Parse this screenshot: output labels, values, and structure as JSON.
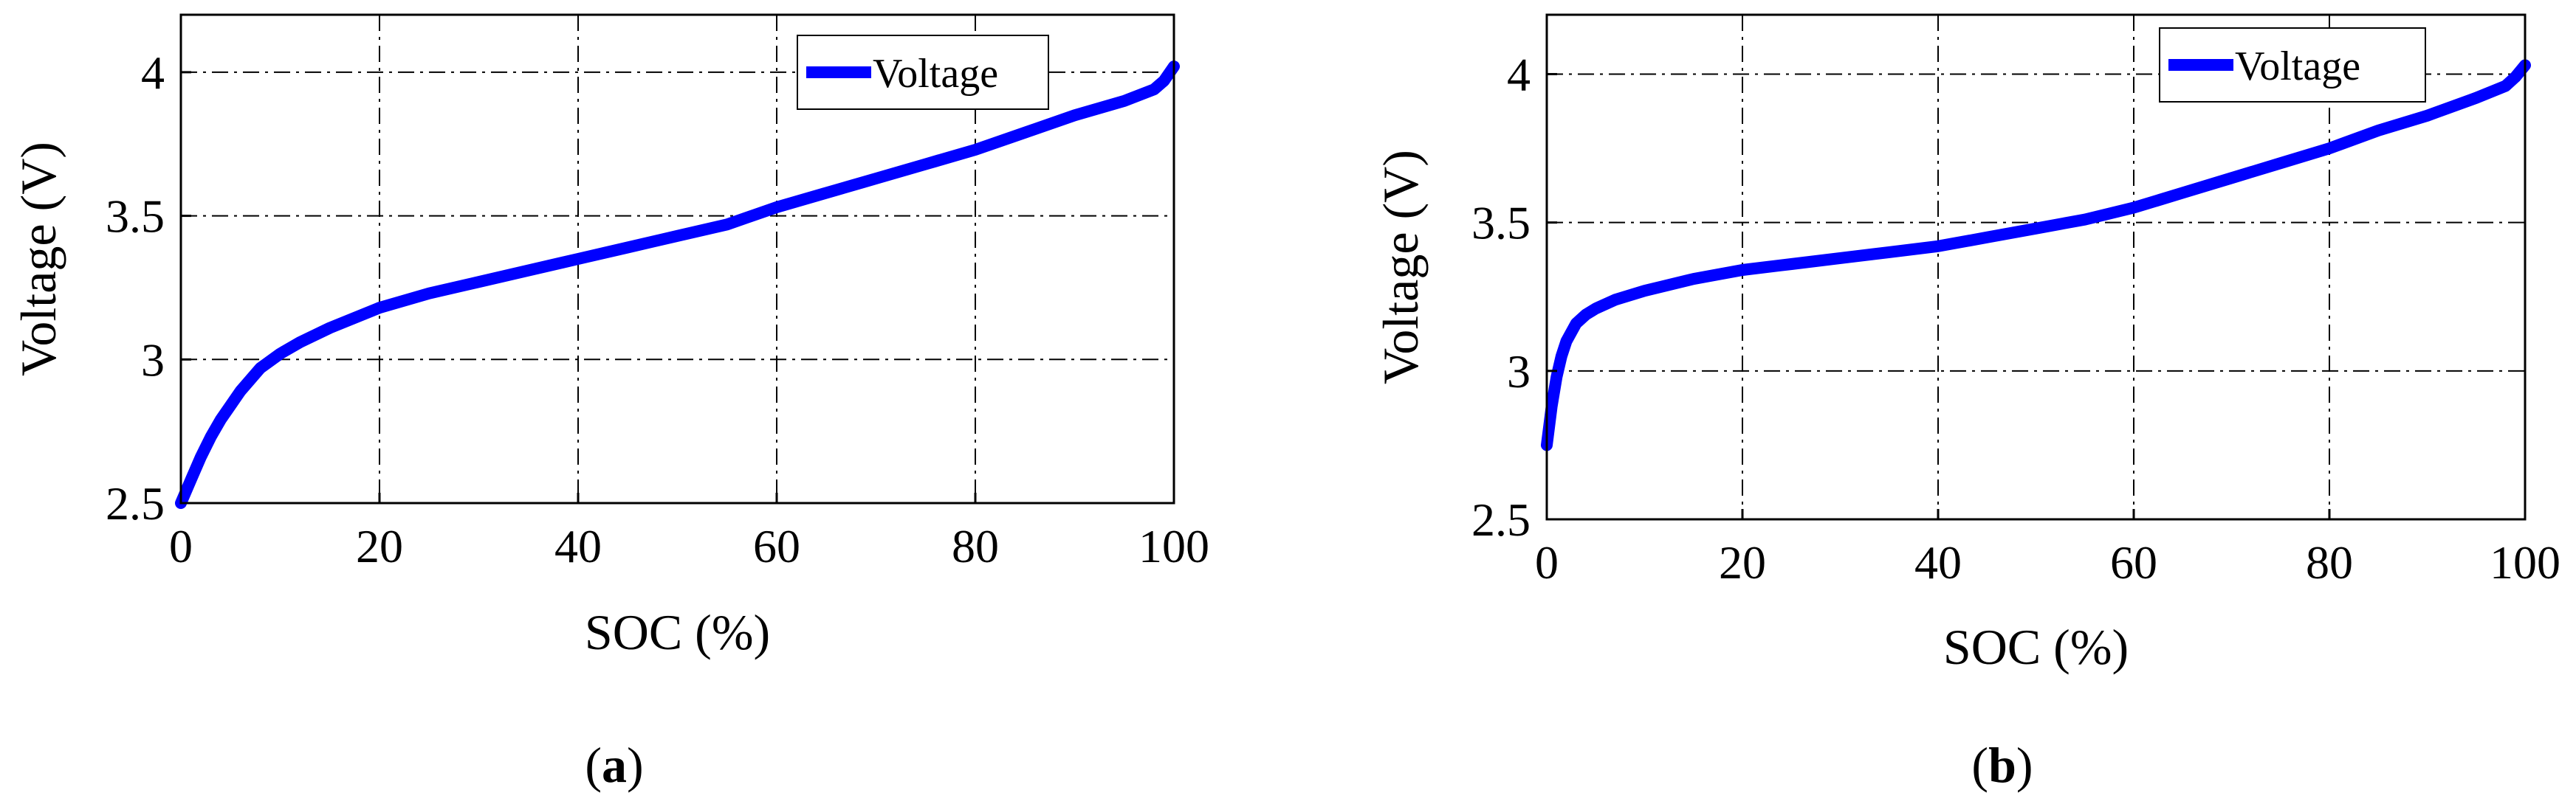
{
  "chart_data": [
    {
      "type": "line",
      "panel_label": "a",
      "caption_open": "(",
      "caption_close": ")",
      "xlabel": "SOC (%)",
      "ylabel": "Voltage (V)",
      "xlim": [
        0,
        100
      ],
      "ylim": [
        2.5,
        4.2
      ],
      "xticks": [
        0,
        20,
        40,
        60,
        80,
        100
      ],
      "xtick_labels": [
        "0",
        "20",
        "40",
        "60",
        "80",
        "100"
      ],
      "yticks": [
        2.5,
        3,
        3.5,
        4
      ],
      "ytick_labels": [
        "2.5",
        "3",
        "3.5",
        "4"
      ],
      "grid": true,
      "legend_position": "top-right",
      "series": [
        {
          "name": "Voltage",
          "color": "#0000ff",
          "x": [
            0,
            1,
            2,
            3,
            4,
            5,
            6,
            7,
            8,
            10,
            12,
            15,
            20,
            25,
            30,
            35,
            40,
            45,
            50,
            55,
            60,
            65,
            70,
            75,
            80,
            85,
            90,
            95,
            98,
            99,
            100
          ],
          "y": [
            2.5,
            2.58,
            2.66,
            2.73,
            2.79,
            2.84,
            2.89,
            2.93,
            2.97,
            3.02,
            3.06,
            3.11,
            3.18,
            3.23,
            3.27,
            3.31,
            3.35,
            3.39,
            3.43,
            3.47,
            3.53,
            3.58,
            3.63,
            3.68,
            3.73,
            3.79,
            3.85,
            3.9,
            3.94,
            3.97,
            4.02
          ]
        }
      ]
    },
    {
      "type": "line",
      "panel_label": "b",
      "caption_open": "(",
      "caption_close": ")",
      "xlabel": "SOC (%)",
      "ylabel": "Voltage (V)",
      "xlim": [
        0,
        100
      ],
      "ylim": [
        2.5,
        4.2
      ],
      "xticks": [
        0,
        20,
        40,
        60,
        80,
        100
      ],
      "xtick_labels": [
        "0",
        "20",
        "40",
        "60",
        "80",
        "100"
      ],
      "yticks": [
        2.5,
        3,
        3.5,
        4
      ],
      "ytick_labels": [
        "2.5",
        "3",
        "3.5",
        "4"
      ],
      "grid": true,
      "legend_position": "top-right",
      "series": [
        {
          "name": "Voltage",
          "color": "#0000ff",
          "x": [
            0,
            0.5,
            1,
            1.5,
            2,
            3,
            4,
            5,
            7,
            10,
            15,
            20,
            25,
            30,
            35,
            40,
            45,
            50,
            55,
            60,
            65,
            70,
            75,
            80,
            85,
            90,
            95,
            98,
            99,
            100
          ],
          "y": [
            2.75,
            2.88,
            2.98,
            3.05,
            3.1,
            3.16,
            3.19,
            3.21,
            3.24,
            3.27,
            3.31,
            3.34,
            3.36,
            3.38,
            3.4,
            3.42,
            3.45,
            3.48,
            3.51,
            3.55,
            3.6,
            3.65,
            3.7,
            3.75,
            3.81,
            3.86,
            3.92,
            3.96,
            3.99,
            4.03
          ]
        }
      ]
    }
  ]
}
